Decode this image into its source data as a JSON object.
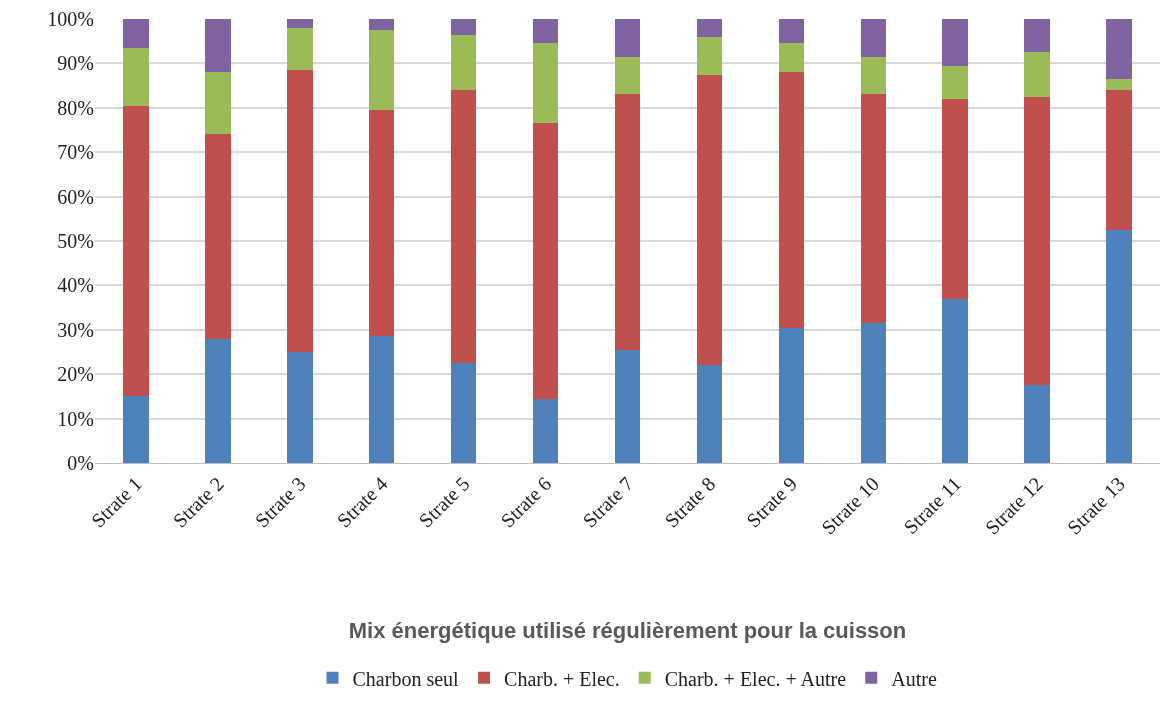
{
  "chart_data": {
    "type": "bar",
    "stacked": true,
    "title": "Mix énergétique utilisé régulièrement pour la cuisson",
    "categories": [
      "Strate 1",
      "Strate 2",
      "Strate 3",
      "Strate 4",
      "Strate 5",
      "Strate 6",
      "Strate 7",
      "Strate 8",
      "Strate 9",
      "Strate 10",
      "Strate 11",
      "Strate 12",
      "Strate 13"
    ],
    "series": [
      {
        "name": "Charbon seul",
        "color": "#4f81bd",
        "values": [
          15,
          28,
          25,
          28.5,
          22.5,
          14.5,
          25.5,
          22,
          30.5,
          31.5,
          37,
          17.5,
          52.5
        ]
      },
      {
        "name": "Charb. + Elec.",
        "color": "#c0504d",
        "values": [
          65.5,
          46,
          63.5,
          51,
          61.5,
          62,
          57.5,
          65.5,
          57.5,
          51.5,
          45,
          65,
          31.5
        ]
      },
      {
        "name": "Charb. + Elec. + Autre",
        "color": "#9bbb59",
        "values": [
          13,
          14,
          9.5,
          18,
          12.5,
          18,
          8.5,
          8.5,
          6.5,
          8.5,
          7.5,
          10,
          2.5
        ]
      },
      {
        "name": "Autre",
        "color": "#8064a2",
        "values": [
          6.5,
          12,
          2,
          2.5,
          3.5,
          5.5,
          8.5,
          4,
          5.5,
          8.5,
          10.5,
          7.5,
          13.5
        ]
      }
    ],
    "ylim": [
      0,
      100
    ],
    "yticks": [
      {
        "value": 0,
        "label": "0%"
      },
      {
        "value": 10,
        "label": "10%"
      },
      {
        "value": 20,
        "label": "20%"
      },
      {
        "value": 30,
        "label": "30%"
      },
      {
        "value": 40,
        "label": "40%"
      },
      {
        "value": 50,
        "label": "50%"
      },
      {
        "value": 60,
        "label": "60%"
      },
      {
        "value": 70,
        "label": "70%"
      },
      {
        "value": 80,
        "label": "80%"
      },
      {
        "value": 90,
        "label": "90%"
      },
      {
        "value": 100,
        "label": "100%"
      }
    ],
    "grid": "y",
    "legend": "bottom"
  }
}
